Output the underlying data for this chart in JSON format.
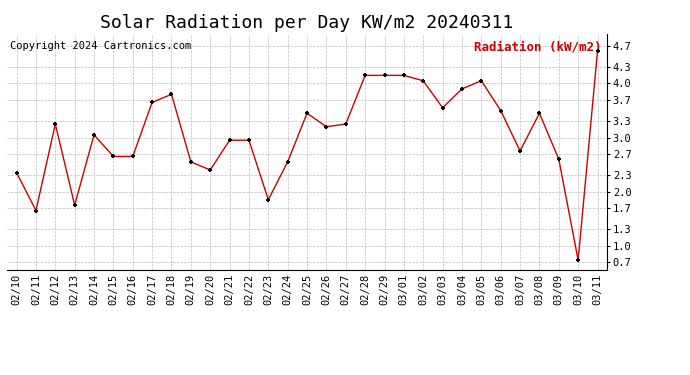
{
  "title": "Solar Radiation per Day KW/m2 20240311",
  "copyright": "Copyright 2024 Cartronics.com",
  "legend_label": "Radiation (kW/m2)",
  "dates": [
    "02/10",
    "02/11",
    "02/12",
    "02/13",
    "02/14",
    "02/15",
    "02/16",
    "02/17",
    "02/18",
    "02/19",
    "02/20",
    "02/21",
    "02/22",
    "02/23",
    "02/24",
    "02/25",
    "02/26",
    "02/27",
    "02/28",
    "02/29",
    "03/01",
    "03/02",
    "03/03",
    "03/04",
    "03/05",
    "03/06",
    "03/07",
    "03/08",
    "03/09",
    "03/10",
    "03/11"
  ],
  "values": [
    2.35,
    1.65,
    3.25,
    1.75,
    3.05,
    2.65,
    2.65,
    3.65,
    3.8,
    2.55,
    2.4,
    2.95,
    2.95,
    1.85,
    2.55,
    3.45,
    3.2,
    3.25,
    4.15,
    4.15,
    4.15,
    4.05,
    3.55,
    3.9,
    4.05,
    3.5,
    2.75,
    3.45,
    2.6,
    0.73,
    4.6
  ],
  "line_color": "#cc0000",
  "marker_color": "#000000",
  "background_color": "#ffffff",
  "grid_color": "#bbbbbb",
  "yticks": [
    0.7,
    1.0,
    1.3,
    1.7,
    2.0,
    2.3,
    2.7,
    3.0,
    3.3,
    3.7,
    4.0,
    4.3,
    4.7
  ],
  "ylim": [
    0.55,
    4.92
  ],
  "title_fontsize": 13,
  "axis_fontsize": 7.5,
  "legend_fontsize": 9,
  "copyright_fontsize": 7.5
}
